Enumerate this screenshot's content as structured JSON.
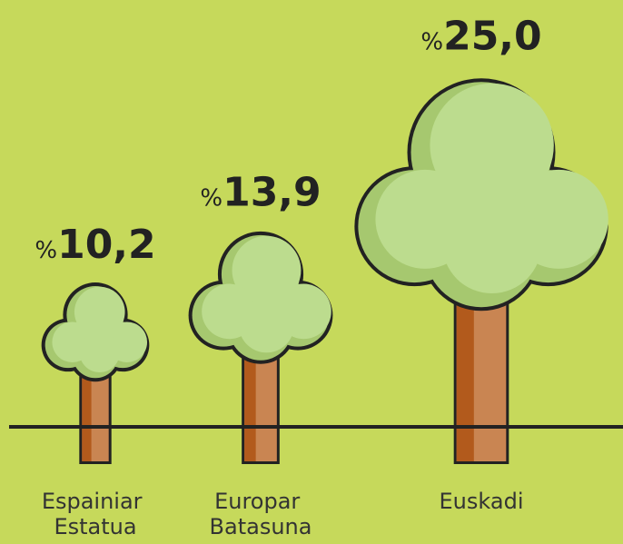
{
  "chart_data": {
    "type": "pictorial",
    "categories": [
      "Espainiar Estatua",
      "Europar Batasuna",
      "Euskadi"
    ],
    "values": [
      10.2,
      13.9,
      25.0
    ],
    "value_labels": [
      "%10,2",
      "%13,9",
      "%25,0"
    ]
  }
}
